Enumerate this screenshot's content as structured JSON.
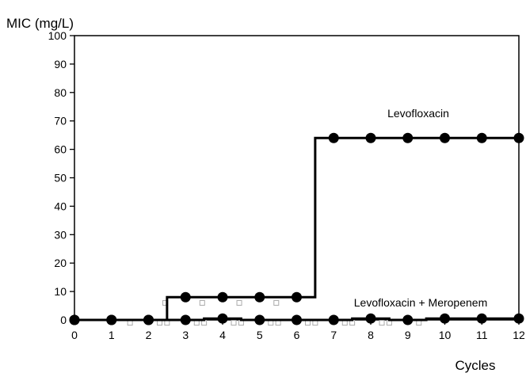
{
  "chart_data": {
    "type": "line",
    "title": "",
    "xlabel": "Cycles",
    "ylabel": "MIC (mg/L)",
    "xlim": [
      0,
      12
    ],
    "ylim": [
      0,
      100
    ],
    "x_ticks": [
      0,
      1,
      2,
      3,
      4,
      5,
      6,
      7,
      8,
      9,
      10,
      11,
      12
    ],
    "y_ticks": [
      0,
      10,
      20,
      30,
      40,
      50,
      60,
      70,
      80,
      90,
      100
    ],
    "grid": false,
    "series": [
      {
        "name": "Levofloxacin",
        "style": "step",
        "x": [
          0,
          1,
          2,
          3,
          4,
          5,
          6,
          7,
          8,
          9,
          10,
          11,
          12
        ],
        "y": [
          0,
          0,
          0,
          8,
          8,
          8,
          8,
          64,
          64,
          64,
          64,
          64,
          64
        ]
      },
      {
        "name": "Levofloxacin + Meropenem",
        "style": "step",
        "x": [
          0,
          1,
          2,
          3,
          4,
          5,
          6,
          7,
          8,
          9,
          10,
          11,
          12
        ],
        "y": [
          0,
          0,
          0,
          0,
          0.5,
          0,
          0,
          0,
          0.5,
          0,
          0.5,
          0.5,
          0.5
        ]
      }
    ],
    "annotations": [
      {
        "text": "Levofloxacin",
        "x": 9.5,
        "y": 72
      },
      {
        "text": "Levofloxacin + Meropenem",
        "x": 9.7,
        "y": 5
      }
    ],
    "colors": {
      "line": "#000000",
      "marker": "#000000",
      "faint_marker": "#aaaaaa"
    }
  }
}
